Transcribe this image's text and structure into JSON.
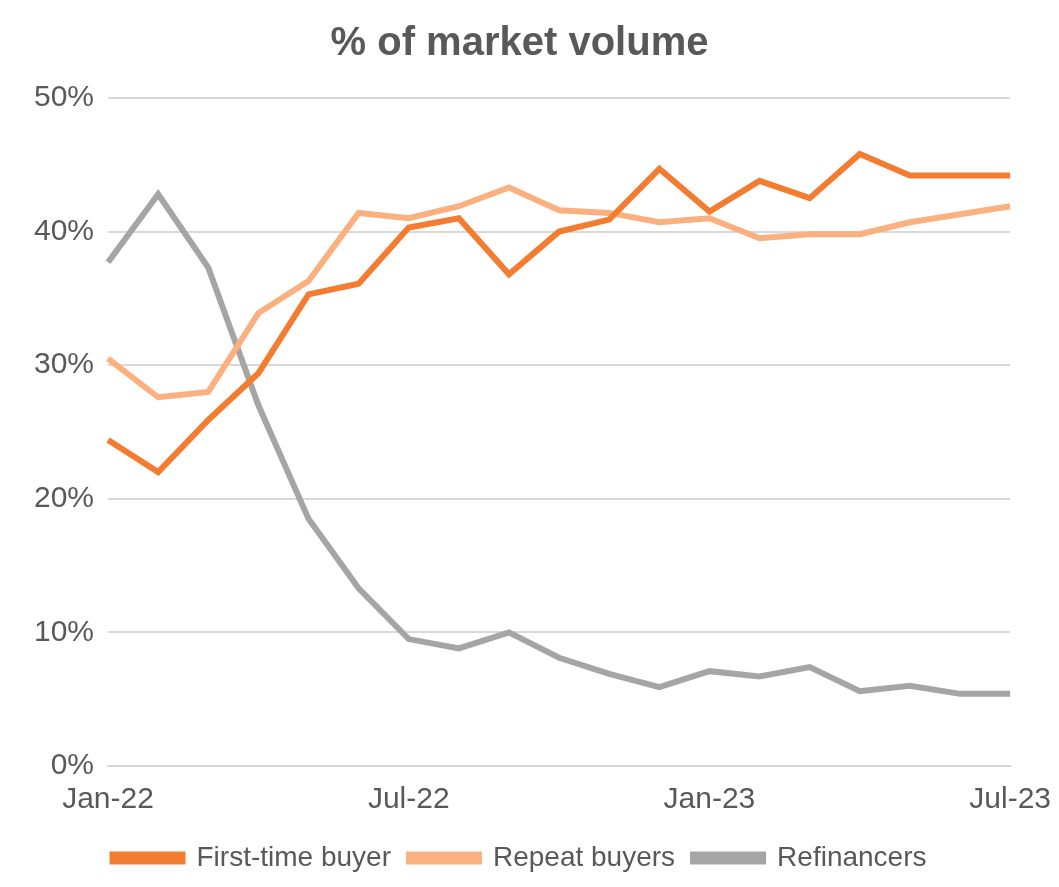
{
  "chart_data": {
    "type": "line",
    "title": "% of market volume",
    "categories": [
      "Jan-22",
      null,
      null,
      null,
      null,
      null,
      "Jul-22",
      null,
      null,
      null,
      null,
      null,
      "Jan-23",
      null,
      null,
      null,
      null,
      null,
      "Jul-23"
    ],
    "series": [
      {
        "name": "First-time buyer",
        "color": "#f47c30",
        "values": [
          24.4,
          22.0,
          25.9,
          29.4,
          35.3,
          36.1,
          40.3,
          41.0,
          36.8,
          40.0,
          40.9,
          44.7,
          41.5,
          43.8,
          42.5,
          45.8,
          44.2,
          44.2,
          44.2
        ]
      },
      {
        "name": "Repeat buyers",
        "color": "#fbb07f",
        "values": [
          30.5,
          27.6,
          28.0,
          33.9,
          36.3,
          41.4,
          41.0,
          41.9,
          43.3,
          41.6,
          41.4,
          40.7,
          41.0,
          39.5,
          39.8,
          39.8,
          40.7,
          41.3,
          41.9
        ]
      },
      {
        "name": "Refinancers",
        "color": "#a5a5a5",
        "values": [
          37.7,
          42.8,
          37.3,
          27.0,
          18.5,
          13.3,
          9.5,
          8.8,
          10.0,
          8.1,
          6.9,
          5.9,
          7.1,
          6.7,
          7.4,
          5.6,
          6.0,
          5.4,
          5.4
        ]
      }
    ],
    "ylim": [
      0,
      50
    ],
    "yticks": [
      {
        "value": 0,
        "label": "0%"
      },
      {
        "value": 10,
        "label": "10%"
      },
      {
        "value": 20,
        "label": "20%"
      },
      {
        "value": 30,
        "label": "30%"
      },
      {
        "value": 40,
        "label": "40%"
      },
      {
        "value": 50,
        "label": "50%"
      }
    ],
    "grid": true,
    "legend": "bottom",
    "marker": "none",
    "line_style": "solid"
  }
}
